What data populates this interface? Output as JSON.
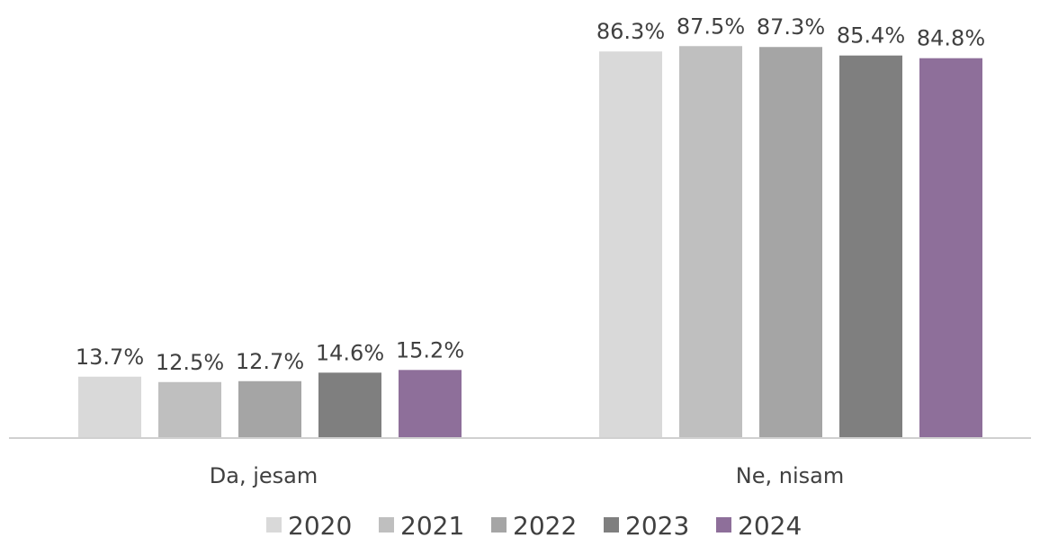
{
  "chart_data": {
    "type": "bar",
    "title": "",
    "xlabel": "",
    "ylabel": "",
    "ylim": [
      0,
      100
    ],
    "categories": [
      "Da, jesam",
      "Ne, nisam"
    ],
    "series": [
      {
        "name": "2020",
        "color": "#d9d9d9",
        "values": [
          13.7,
          86.3
        ],
        "labels": [
          "13.7%",
          "86.3%"
        ]
      },
      {
        "name": "2021",
        "color": "#bfbfbf",
        "values": [
          12.5,
          87.5
        ],
        "labels": [
          "12.5%",
          "87.5%"
        ]
      },
      {
        "name": "2022",
        "color": "#a5a5a5",
        "values": [
          12.7,
          87.3
        ],
        "labels": [
          "12.7%",
          "87.3%"
        ]
      },
      {
        "name": "2023",
        "color": "#7f7f7f",
        "values": [
          14.6,
          85.4
        ],
        "labels": [
          "14.6%",
          "85.4%"
        ]
      },
      {
        "name": "2024",
        "color": "#8e6f9a",
        "values": [
          15.2,
          84.8
        ],
        "labels": [
          "15.2%",
          "84.8%"
        ]
      }
    ],
    "grid": false,
    "legend_position": "bottom"
  }
}
